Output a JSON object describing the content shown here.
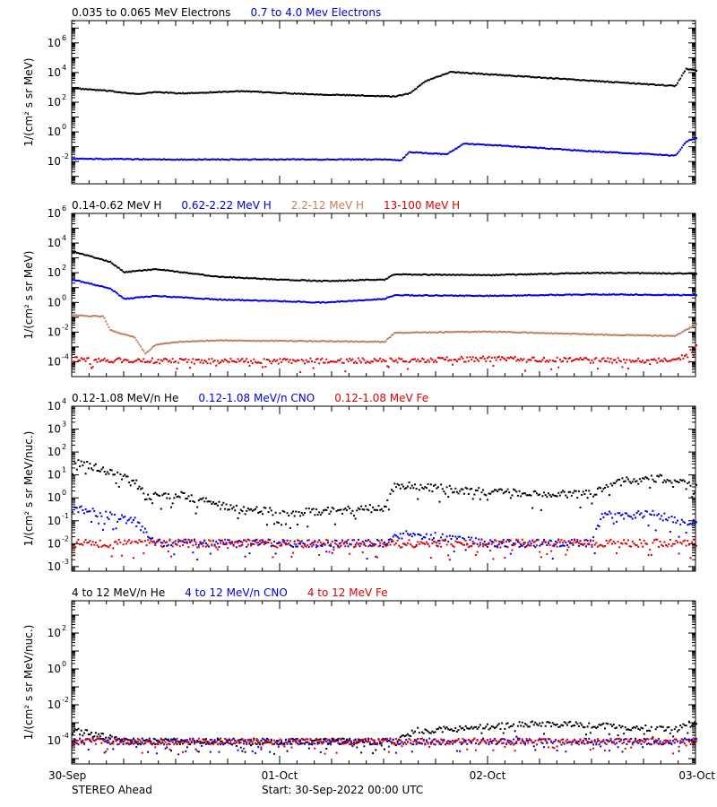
{
  "colors": {
    "black": "#000000",
    "blue": "#0000e0",
    "tan": "#c07f60",
    "red": "#e00000"
  },
  "footer": {
    "left": "STEREO Ahead",
    "start": "Start: 30-Sep-2022 00:00 UTC"
  },
  "x_axis": {
    "ticks": [
      "30-Sep",
      "01-Oct",
      "02-Oct",
      "03-Oct"
    ],
    "range_days": [
      0,
      3
    ]
  },
  "chart_data": [
    {
      "type": "scatter",
      "log_y": true,
      "ylabel": "1/(cm² s sr MeV)",
      "ylim_exp": [
        -3.5,
        7.5
      ],
      "ytick_exps": [
        -2,
        0,
        2,
        4,
        6
      ],
      "legend": [
        {
          "label": "0.035 to 0.065 MeV Electrons",
          "color": "black"
        },
        {
          "label": "0.7 to 4.0 Mev Electrons",
          "color": "blue"
        }
      ],
      "series": [
        {
          "name": "0.035 to 0.065 MeV Electrons",
          "color": "black",
          "x": [
            0,
            0.15,
            0.32,
            0.4,
            0.52,
            0.8,
            1.15,
            1.55,
            1.62,
            1.7,
            1.82,
            2.05,
            2.9,
            2.95,
            3.0
          ],
          "log_values": [
            3.0,
            2.85,
            2.6,
            2.75,
            2.65,
            2.8,
            2.6,
            2.45,
            2.65,
            3.5,
            4.1,
            3.9,
            3.15,
            4.3,
            4.2
          ]
        },
        {
          "name": "0.7 to 4.0 Mev Electrons",
          "color": "blue",
          "x": [
            0,
            0.5,
            1.0,
            1.5,
            1.58,
            1.62,
            1.8,
            1.88,
            2.05,
            2.5,
            2.85,
            2.9,
            2.95,
            3.0
          ],
          "log_values": [
            -1.75,
            -1.8,
            -1.8,
            -1.8,
            -1.85,
            -1.3,
            -1.45,
            -0.75,
            -0.85,
            -1.25,
            -1.5,
            -1.55,
            -0.6,
            -0.35
          ]
        }
      ]
    },
    {
      "type": "scatter",
      "log_y": true,
      "ylabel": "1/(cm² s sr MeV)",
      "ylim_exp": [
        -5,
        6
      ],
      "ytick_exps": [
        -4,
        -2,
        0,
        2,
        4,
        6
      ],
      "legend": [
        {
          "label": "0.14-0.62 MeV H",
          "color": "black"
        },
        {
          "label": "0.62-2.22 MeV H",
          "color": "blue"
        },
        {
          "label": "2.2-12 MeV H",
          "color": "tan"
        },
        {
          "label": "13-100 MeV H",
          "color": "red"
        }
      ],
      "series": [
        {
          "name": "0.14-0.62 MeV H",
          "color": "black",
          "x": [
            0,
            0.18,
            0.25,
            0.4,
            0.7,
            1.0,
            1.2,
            1.5,
            1.55,
            2.0,
            2.5,
            3.0
          ],
          "log_values": [
            3.5,
            2.8,
            2.1,
            2.3,
            1.8,
            1.6,
            1.5,
            1.6,
            1.95,
            1.9,
            2.05,
            2.0
          ]
        },
        {
          "name": "0.62-2.22 MeV H",
          "color": "blue",
          "x": [
            0,
            0.18,
            0.25,
            0.4,
            0.7,
            1.0,
            1.2,
            1.5,
            1.55,
            2.0,
            2.5,
            3.0
          ],
          "log_values": [
            1.6,
            1.0,
            0.3,
            0.5,
            0.25,
            0.15,
            0.05,
            0.3,
            0.55,
            0.5,
            0.6,
            0.55
          ]
        },
        {
          "name": "2.2-12 MeV H",
          "color": "tan",
          "x": [
            0,
            0.15,
            0.18,
            0.3,
            0.35,
            0.4,
            0.5,
            0.7,
            1.2,
            1.5,
            1.55,
            2.0,
            2.5,
            2.9,
            3.0
          ],
          "log_values": [
            -0.8,
            -0.9,
            -1.8,
            -2.3,
            -3.4,
            -2.8,
            -2.6,
            -2.5,
            -2.55,
            -2.6,
            -2.0,
            -1.9,
            -2.1,
            -2.2,
            -1.4
          ]
        },
        {
          "name": "13-100 MeV H",
          "color": "red",
          "x": [
            0,
            0.5,
            1.0,
            1.5,
            2.0,
            2.5,
            2.85,
            2.95,
            3.0
          ],
          "log_values": [
            -3.8,
            -3.9,
            -3.9,
            -3.85,
            -3.75,
            -3.85,
            -3.85,
            -3.6,
            -2.9
          ]
        }
      ]
    },
    {
      "type": "scatter",
      "log_y": true,
      "ylabel": "1/(cm² s sr MeV/nuc.)",
      "ylim_exp": [
        -3.2,
        4
      ],
      "ytick_exps": [
        -3,
        -2,
        -1,
        0,
        1,
        2,
        3,
        4
      ],
      "legend": [
        {
          "label": "0.12-1.08 MeV/n He",
          "color": "black"
        },
        {
          "label": "0.12-1.08 MeV/n CNO",
          "color": "blue"
        },
        {
          "label": "0.12-1.08 MeV Fe",
          "color": "red"
        }
      ],
      "series": [
        {
          "name": "0.12-1.08 MeV/n He",
          "color": "black",
          "x": [
            0,
            0.1,
            0.3,
            0.35,
            0.5,
            0.8,
            1.1,
            1.5,
            1.55,
            2.0,
            2.5,
            2.6,
            2.8,
            3.0
          ],
          "log_values": [
            1.6,
            1.4,
            0.8,
            0.1,
            0.2,
            -0.5,
            -0.6,
            -0.4,
            0.6,
            0.3,
            0.2,
            0.7,
            0.9,
            0.7
          ]
        },
        {
          "name": "0.12-1.08 MeV/n CNO",
          "color": "blue",
          "x": [
            0,
            0.1,
            0.2,
            0.3,
            0.4,
            1.5,
            1.6,
            2.0,
            2.5,
            2.55,
            2.6,
            2.8,
            3.0
          ],
          "log_values": [
            -0.4,
            -0.6,
            -0.8,
            -1.0,
            -1.95,
            -1.95,
            -1.5,
            -1.95,
            -1.95,
            -0.7,
            -0.7,
            -0.7,
            -1.1
          ]
        },
        {
          "name": "0.12-1.08 MeV Fe",
          "color": "red",
          "x": [
            0,
            1.0,
            1.5,
            2.0,
            2.5,
            3.0
          ],
          "log_values": [
            -1.95,
            -1.95,
            -1.95,
            -1.95,
            -1.95,
            -1.95
          ]
        }
      ]
    },
    {
      "type": "scatter",
      "log_y": true,
      "ylabel": "1/(cm² s sr MeV/nuc.)",
      "ylim_exp": [
        -5.3,
        3.8
      ],
      "ytick_exps": [
        -4,
        -2,
        0,
        2
      ],
      "legend": [
        {
          "label": "4 to 12 MeV/n He",
          "color": "black"
        },
        {
          "label": "4 to 12 MeV/n CNO",
          "color": "blue"
        },
        {
          "label": "4 to 12 MeV Fe",
          "color": "red"
        }
      ],
      "series": [
        {
          "name": "4 to 12 MeV/n He",
          "color": "black",
          "x": [
            0,
            0.1,
            0.25,
            1.0,
            1.55,
            1.65,
            2.0,
            2.2,
            2.5,
            2.9,
            3.0
          ],
          "log_values": [
            -3.4,
            -3.6,
            -4.0,
            -4.0,
            -4.0,
            -3.4,
            -3.2,
            -3.0,
            -3.1,
            -3.3,
            -2.9
          ]
        },
        {
          "name": "4 to 12 MeV/n CNO",
          "color": "blue",
          "x": [
            0,
            1.0,
            2.0,
            3.0
          ],
          "log_values": [
            -4.0,
            -4.0,
            -4.0,
            -4.0
          ]
        },
        {
          "name": "4 to 12 MeV Fe",
          "color": "red",
          "x": [
            0,
            1.0,
            2.0,
            3.0
          ],
          "log_values": [
            -4.0,
            -4.0,
            -4.0,
            -4.0
          ]
        }
      ]
    }
  ]
}
